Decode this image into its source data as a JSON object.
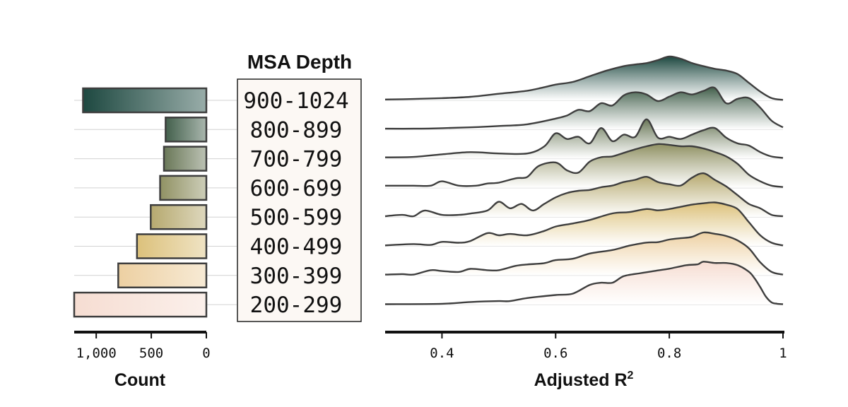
{
  "colors": {
    "dark": "#1d4840",
    "gold": "#e6c77e",
    "peach": "#f6ddd2",
    "outline": "#3e3e3e",
    "grid": "#d2d2d2",
    "box_fill": "#fcf8f4"
  },
  "chart_data": [
    {
      "type": "bar",
      "orientation": "horizontal",
      "xlabel": "Count",
      "xlim": [
        1200,
        0
      ],
      "x_ticks": [
        "1,000",
        "500",
        "0"
      ],
      "x_tick_values": [
        1000,
        500,
        0
      ],
      "categories": [
        "900-1024",
        "800-899",
        "700-799",
        "600-699",
        "500-599",
        "400-499",
        "300-399",
        "200-299"
      ],
      "values": [
        1120,
        370,
        385,
        420,
        505,
        630,
        800,
        1200
      ]
    },
    {
      "type": "area",
      "subtype": "ridgeline",
      "category_title": "MSA Depth",
      "xlabel_main": "Adjusted R",
      "xlabel_sup": "2",
      "xlim": [
        0.3,
        1.0
      ],
      "x_ticks": [
        "0.4",
        "0.6",
        "0.8",
        "1"
      ],
      "x_tick_values": [
        0.4,
        0.6,
        0.8,
        1.0
      ],
      "series": [
        {
          "category": "900-1024",
          "x": [
            0.3,
            0.35,
            0.4,
            0.45,
            0.5,
            0.55,
            0.58,
            0.6,
            0.63,
            0.66,
            0.69,
            0.72,
            0.74,
            0.76,
            0.78,
            0.8,
            0.82,
            0.84,
            0.86,
            0.88,
            0.9,
            0.92,
            0.94,
            0.96,
            0.98,
            1.0
          ],
          "y": [
            0.02,
            0.03,
            0.05,
            0.08,
            0.15,
            0.22,
            0.3,
            0.36,
            0.42,
            0.55,
            0.68,
            0.78,
            0.82,
            0.85,
            0.92,
            1.0,
            0.95,
            0.85,
            0.78,
            0.72,
            0.68,
            0.6,
            0.4,
            0.2,
            0.05,
            0.01
          ]
        },
        {
          "category": "800-899",
          "x": [
            0.3,
            0.35,
            0.4,
            0.45,
            0.5,
            0.55,
            0.6,
            0.62,
            0.64,
            0.66,
            0.68,
            0.7,
            0.72,
            0.74,
            0.76,
            0.78,
            0.8,
            0.82,
            0.84,
            0.86,
            0.88,
            0.9,
            0.92,
            0.94,
            0.96,
            0.98,
            1.0
          ],
          "y": [
            0.02,
            0.02,
            0.03,
            0.05,
            0.08,
            0.12,
            0.25,
            0.32,
            0.45,
            0.42,
            0.6,
            0.55,
            0.78,
            0.85,
            0.8,
            0.65,
            0.75,
            0.85,
            0.8,
            0.88,
            0.95,
            0.6,
            0.7,
            0.72,
            0.5,
            0.2,
            0.05
          ]
        },
        {
          "category": "700-799",
          "x": [
            0.3,
            0.35,
            0.4,
            0.45,
            0.5,
            0.55,
            0.58,
            0.6,
            0.62,
            0.64,
            0.66,
            0.68,
            0.7,
            0.72,
            0.74,
            0.76,
            0.78,
            0.8,
            0.82,
            0.84,
            0.86,
            0.88,
            0.9,
            0.92,
            0.94,
            0.96,
            0.98,
            1.0
          ],
          "y": [
            0.03,
            0.04,
            0.1,
            0.15,
            0.12,
            0.12,
            0.28,
            0.58,
            0.45,
            0.5,
            0.35,
            0.7,
            0.4,
            0.55,
            0.5,
            0.9,
            0.48,
            0.5,
            0.45,
            0.55,
            0.65,
            0.7,
            0.48,
            0.35,
            0.3,
            0.15,
            0.05,
            0.02
          ]
        },
        {
          "category": "600-699",
          "x": [
            0.3,
            0.35,
            0.38,
            0.4,
            0.43,
            0.46,
            0.48,
            0.5,
            0.53,
            0.55,
            0.57,
            0.6,
            0.62,
            0.64,
            0.66,
            0.68,
            0.7,
            0.72,
            0.74,
            0.76,
            0.78,
            0.8,
            0.82,
            0.84,
            0.86,
            0.88,
            0.9,
            0.92,
            0.94,
            0.96,
            0.98,
            1.0
          ],
          "y": [
            0.05,
            0.05,
            0.05,
            0.15,
            0.05,
            0.05,
            0.1,
            0.12,
            0.22,
            0.25,
            0.5,
            0.58,
            0.4,
            0.35,
            0.6,
            0.7,
            0.72,
            0.8,
            0.88,
            0.95,
            1.0,
            0.98,
            0.95,
            0.95,
            0.9,
            0.82,
            0.72,
            0.55,
            0.3,
            0.15,
            0.05,
            0.02
          ]
        },
        {
          "category": "500-599",
          "x": [
            0.3,
            0.33,
            0.35,
            0.37,
            0.4,
            0.43,
            0.45,
            0.48,
            0.5,
            0.52,
            0.54,
            0.56,
            0.58,
            0.6,
            0.62,
            0.64,
            0.66,
            0.68,
            0.7,
            0.72,
            0.74,
            0.76,
            0.78,
            0.8,
            0.82,
            0.84,
            0.86,
            0.88,
            0.9,
            0.92,
            0.94,
            0.96,
            0.98,
            1.0
          ],
          "y": [
            0.02,
            0.05,
            0.02,
            0.15,
            0.05,
            0.05,
            0.08,
            0.15,
            0.35,
            0.2,
            0.3,
            0.15,
            0.3,
            0.45,
            0.55,
            0.6,
            0.62,
            0.68,
            0.72,
            0.8,
            0.85,
            0.92,
            0.8,
            0.75,
            0.72,
            0.9,
            1.0,
            0.85,
            0.7,
            0.5,
            0.3,
            0.2,
            0.05,
            0.02
          ]
        },
        {
          "category": "400-499",
          "x": [
            0.3,
            0.35,
            0.38,
            0.4,
            0.43,
            0.45,
            0.48,
            0.5,
            0.52,
            0.55,
            0.58,
            0.6,
            0.63,
            0.66,
            0.7,
            0.73,
            0.76,
            0.78,
            0.8,
            0.82,
            0.84,
            0.86,
            0.88,
            0.9,
            0.92,
            0.94,
            0.96,
            0.98,
            1.0
          ],
          "y": [
            0.02,
            0.05,
            0.03,
            0.1,
            0.08,
            0.12,
            0.3,
            0.25,
            0.28,
            0.25,
            0.35,
            0.45,
            0.52,
            0.6,
            0.75,
            0.78,
            0.85,
            0.82,
            0.85,
            0.9,
            0.95,
            0.98,
            1.0,
            0.95,
            0.85,
            0.55,
            0.25,
            0.08,
            0.02
          ]
        },
        {
          "category": "300-399",
          "x": [
            0.3,
            0.33,
            0.35,
            0.38,
            0.4,
            0.43,
            0.45,
            0.48,
            0.5,
            0.53,
            0.55,
            0.58,
            0.6,
            0.63,
            0.66,
            0.7,
            0.73,
            0.76,
            0.78,
            0.8,
            0.82,
            0.84,
            0.86,
            0.88,
            0.9,
            0.92,
            0.94,
            0.96,
            0.98,
            1.0
          ],
          "y": [
            0.02,
            0.03,
            0.02,
            0.12,
            0.1,
            0.08,
            0.15,
            0.12,
            0.12,
            0.22,
            0.25,
            0.28,
            0.35,
            0.38,
            0.5,
            0.58,
            0.68,
            0.75,
            0.76,
            0.82,
            0.85,
            0.88,
            0.98,
            0.95,
            0.9,
            0.8,
            0.62,
            0.3,
            0.08,
            0.02
          ]
        },
        {
          "category": "200-299",
          "x": [
            0.3,
            0.4,
            0.45,
            0.5,
            0.52,
            0.55,
            0.6,
            0.63,
            0.66,
            0.68,
            0.7,
            0.72,
            0.75,
            0.78,
            0.8,
            0.83,
            0.85,
            0.86,
            0.88,
            0.9,
            0.92,
            0.94,
            0.95,
            0.96,
            0.97,
            0.98,
            0.99,
            1.0
          ],
          "y": [
            0.01,
            0.02,
            0.06,
            0.08,
            0.08,
            0.15,
            0.22,
            0.25,
            0.45,
            0.5,
            0.5,
            0.65,
            0.72,
            0.78,
            0.82,
            0.9,
            0.92,
            0.98,
            0.95,
            0.95,
            0.9,
            0.75,
            0.6,
            0.4,
            0.18,
            0.05,
            0.02,
            0.01
          ]
        }
      ]
    }
  ]
}
